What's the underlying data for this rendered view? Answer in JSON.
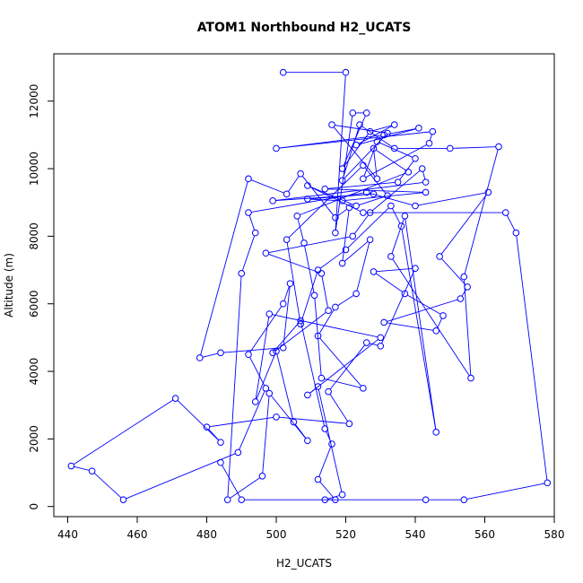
{
  "chart_data": {
    "type": "line",
    "title": "ATOM1 Northbound H2_UCATS",
    "xlabel": "H2_UCATS",
    "ylabel": "Altitude (m)",
    "xlim": [
      436,
      580
    ],
    "ylim": [
      -300,
      13400
    ],
    "xticks": [
      440,
      460,
      480,
      500,
      520,
      540,
      560,
      580
    ],
    "yticks": [
      0,
      2000,
      4000,
      6000,
      8000,
      10000,
      12000
    ],
    "grid": false,
    "legend": "none",
    "series_color": "#0000ff",
    "marker": "open-circle",
    "series": [
      {
        "values": [
          [
            502,
            12850
          ],
          [
            520,
            12850
          ],
          [
            517,
            8100
          ],
          [
            522,
            11650
          ],
          [
            526,
            11650
          ],
          [
            519,
            10000
          ],
          [
            527,
            11100
          ],
          [
            534,
            11300
          ],
          [
            523,
            10700
          ],
          [
            541,
            11200
          ],
          [
            531,
            11000
          ],
          [
            500,
            10600
          ],
          [
            545,
            11100
          ],
          [
            544,
            10750
          ],
          [
            525,
            9700
          ],
          [
            529,
            10800
          ],
          [
            540,
            10300
          ],
          [
            535,
            9600
          ],
          [
            514,
            9400
          ],
          [
            543,
            9300
          ],
          [
            519,
            9050
          ],
          [
            509,
            9100
          ],
          [
            528,
            9250
          ],
          [
            499,
            9050
          ],
          [
            543,
            9600
          ],
          [
            542,
            10000
          ],
          [
            527,
            8700
          ],
          [
            522,
            8000
          ],
          [
            497,
            7500
          ],
          [
            513,
            6900
          ],
          [
            515,
            5800
          ],
          [
            499,
            4550
          ],
          [
            507,
            5500
          ],
          [
            514,
            2300
          ],
          [
            516,
            1850
          ],
          [
            512,
            800
          ],
          [
            517,
            200
          ],
          [
            514,
            200
          ],
          [
            519,
            350
          ],
          [
            512,
            3550
          ],
          [
            509,
            3300
          ],
          [
            530,
            5000
          ],
          [
            498,
            5700
          ],
          [
            494,
            3100
          ],
          [
            500,
            4600
          ],
          [
            505,
            2500
          ],
          [
            509,
            1950
          ],
          [
            498,
            3350
          ],
          [
            496,
            900
          ],
          [
            486,
            200
          ],
          [
            490,
            6900
          ],
          [
            494,
            8100
          ],
          [
            492,
            8700
          ],
          [
            526,
            9300
          ],
          [
            540,
            8900
          ],
          [
            561,
            9300
          ],
          [
            547,
            7400
          ],
          [
            555,
            6500
          ],
          [
            553,
            6150
          ],
          [
            531,
            5450
          ],
          [
            546,
            5200
          ],
          [
            548,
            5650
          ],
          [
            537,
            6300
          ],
          [
            528,
            6950
          ],
          [
            540,
            7050
          ],
          [
            530,
            4750
          ],
          [
            526,
            4850
          ],
          [
            515,
            3400
          ],
          [
            521,
            2450
          ],
          [
            500,
            2650
          ],
          [
            480,
            2350
          ],
          [
            484,
            1900
          ],
          [
            471,
            3200
          ],
          [
            441,
            1200
          ],
          [
            447,
            1050
          ],
          [
            456,
            200
          ],
          [
            489,
            1600
          ],
          [
            497,
            3500
          ],
          [
            492,
            4500
          ],
          [
            502,
            6000
          ],
          [
            504,
            6600
          ],
          [
            502,
            4700
          ],
          [
            484,
            4550
          ],
          [
            478,
            4400
          ],
          [
            492,
            9700
          ],
          [
            503,
            9250
          ],
          [
            507,
            9850
          ],
          [
            517,
            8550
          ],
          [
            521,
            8850
          ],
          [
            519,
            7200
          ],
          [
            527,
            7900
          ],
          [
            523,
            6300
          ],
          [
            517,
            5900
          ],
          [
            512,
            5050
          ],
          [
            525,
            3500
          ],
          [
            513,
            3800
          ],
          [
            511,
            6250
          ],
          [
            508,
            7800
          ],
          [
            506,
            8600
          ],
          [
            538,
            9900
          ],
          [
            528,
            10600
          ],
          [
            529,
            9700
          ],
          [
            516,
            11300
          ],
          [
            532,
            11050
          ],
          [
            519,
            9650
          ],
          [
            524,
            11300
          ],
          [
            534,
            10600
          ],
          [
            550,
            10600
          ],
          [
            564,
            10650
          ],
          [
            554,
            6800
          ],
          [
            556,
            3800
          ],
          [
            533,
            7400
          ],
          [
            537,
            8600
          ],
          [
            546,
            2200
          ],
          [
            536,
            8300
          ],
          [
            533,
            8900
          ],
          [
            520,
            7600
          ],
          [
            512,
            7000
          ],
          [
            507,
            5400
          ],
          [
            503,
            7900
          ],
          [
            525,
            10100
          ],
          [
            532,
            9200
          ],
          [
            523,
            8900
          ],
          [
            509,
            9500
          ],
          [
            525,
            8700
          ],
          [
            566,
            8700
          ],
          [
            569,
            8100
          ],
          [
            578,
            700
          ],
          [
            554,
            200
          ],
          [
            543,
            200
          ],
          [
            490,
            200
          ],
          [
            484,
            1300
          ]
        ]
      }
    ]
  }
}
